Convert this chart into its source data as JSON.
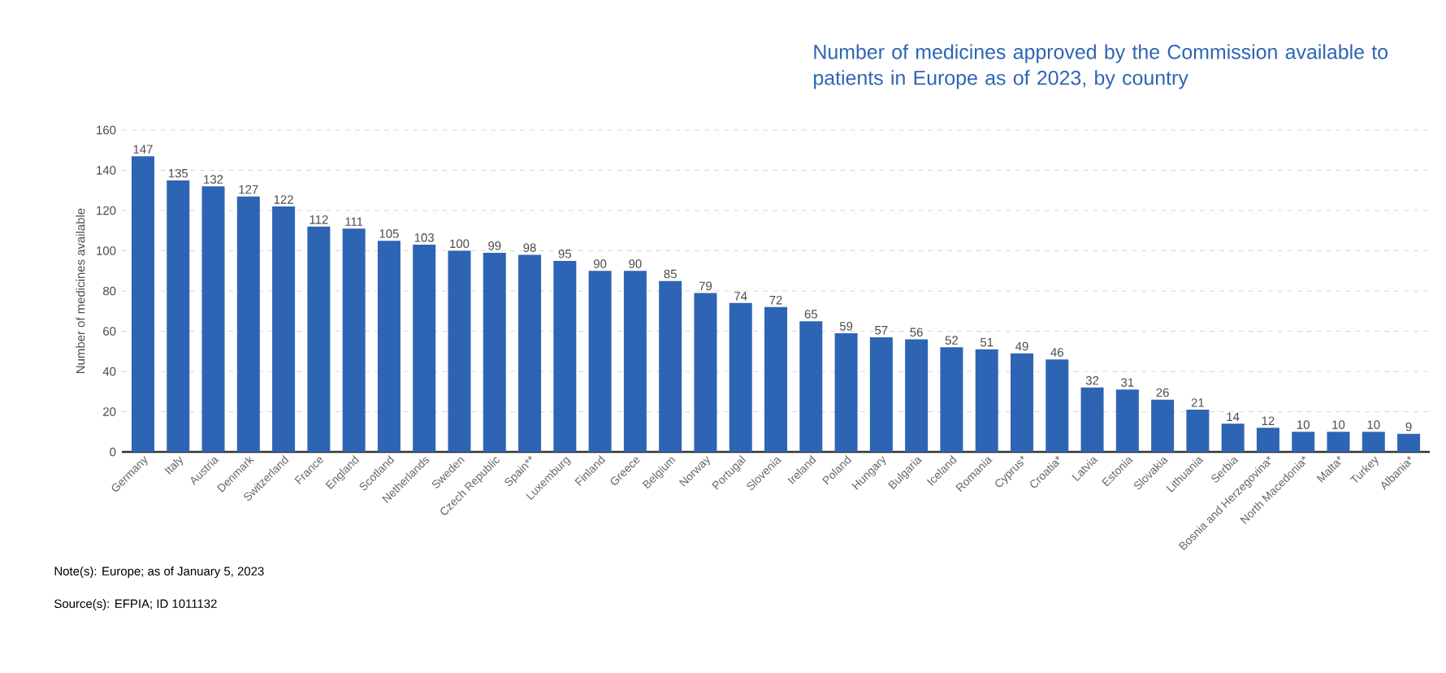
{
  "chart_data": {
    "type": "bar",
    "title": "Number of medicines approved by the Commission available to patients in Europe as of 2023, by country",
    "ylabel": "Number of medicines available",
    "categories": [
      "Germany",
      "Italy",
      "Austria",
      "Denmark",
      "Switzerland",
      "France",
      "England",
      "Scotland",
      "Netherlands",
      "Sweden",
      "Czech Republic",
      "Spain**",
      "Luxemburg",
      "Finland",
      "Greece",
      "Belgium",
      "Norway",
      "Portugal",
      "Slovenia",
      "Ireland",
      "Poland",
      "Hungary",
      "Bulgaria",
      "Iceland",
      "Romania",
      "Cyprus*",
      "Croatia*",
      "Latvia",
      "Estonia",
      "Slovakia",
      "Lithuania",
      "Serbia",
      "Bosnia and Herzegovina*",
      "North Macedonia*",
      "Malta*",
      "Turkey",
      "Albania*"
    ],
    "values": [
      147,
      135,
      132,
      127,
      122,
      112,
      111,
      105,
      103,
      100,
      99,
      98,
      95,
      90,
      90,
      85,
      79,
      74,
      72,
      65,
      59,
      57,
      56,
      52,
      51,
      49,
      46,
      32,
      31,
      26,
      21,
      14,
      12,
      10,
      10,
      10,
      9
    ],
    "color": "#2e64b4",
    "ylim": [
      0,
      160
    ],
    "yticks": [
      0,
      20,
      40,
      60,
      80,
      100,
      120,
      140,
      160
    ],
    "grid": "y",
    "data_labels": true,
    "annotations": [
      "Note(s): Europe; as of January 5, 2023",
      "Source(s): EFPIA; ID 1011132"
    ]
  }
}
